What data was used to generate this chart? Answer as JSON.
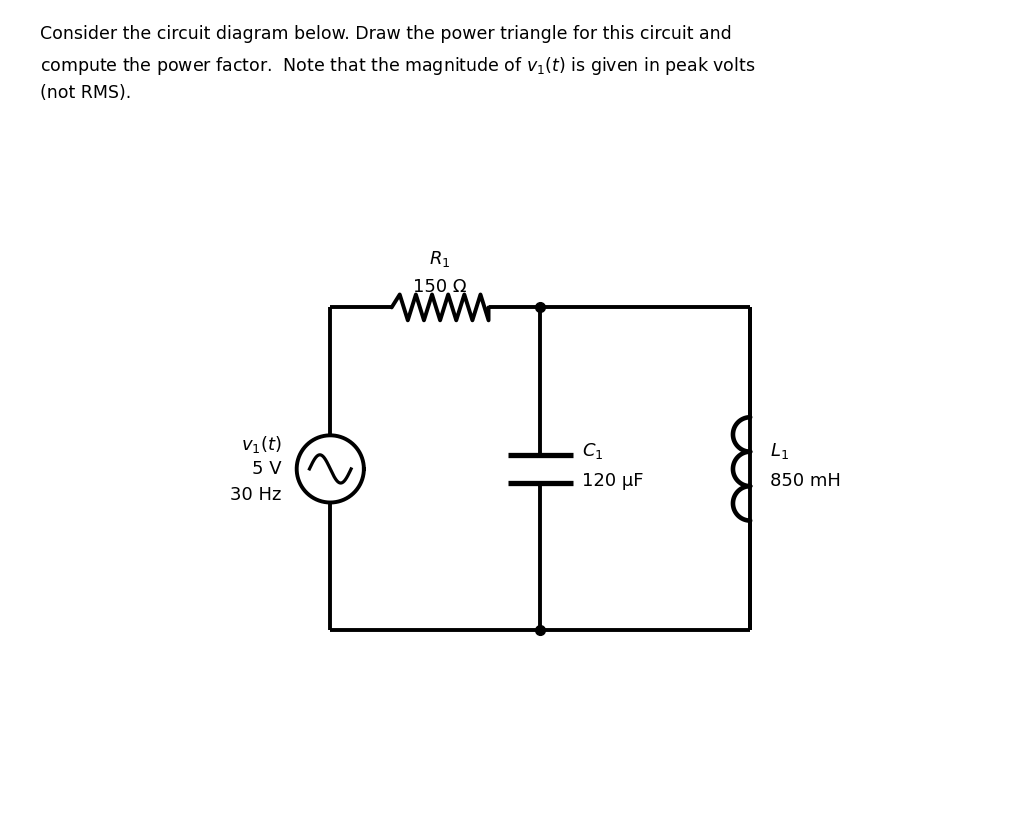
{
  "title_line1": "Consider the circuit diagram below. Draw the power triangle for this circuit and",
  "title_line2": "compute the power factor.  Note that the magnitude of $v_1(t)$ is given in peak volts",
  "title_line3": "(not RMS).",
  "R1_label": "$R_1$",
  "R1_value": "150 Ω",
  "C1_label": "$C_1$",
  "C1_value": "120 μF",
  "L1_label": "$L_1$",
  "L1_value": "850 mH",
  "source_label_v": "$v_1(t)$",
  "source_label_amp": "5 V",
  "source_label_freq": "30 Hz",
  "bg_color": "#ffffff",
  "line_color": "#000000",
  "font_size_title": 12.5,
  "font_size_label": 13,
  "lw": 2.8
}
